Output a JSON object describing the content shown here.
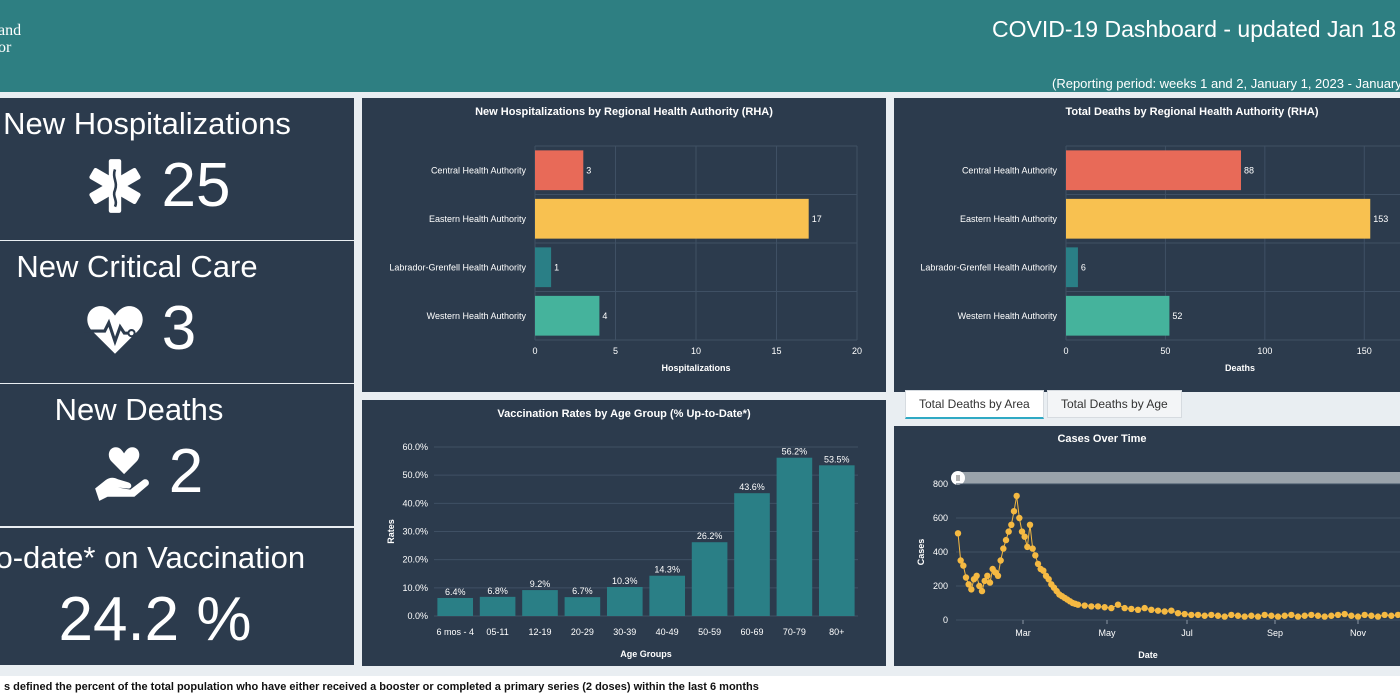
{
  "header": {
    "logo": [
      "and",
      "or"
    ],
    "title": "COVID-19 Dashboard - updated Jan 18",
    "subtitle": "(Reporting period: weeks 1 and 2, January 1, 2023 - January"
  },
  "kpis": [
    {
      "label": "New Hospitalizations",
      "value": "25",
      "icon": "star-of-life-icon"
    },
    {
      "label": "New Critical Care",
      "value": "3",
      "icon": "heart-pulse-icon"
    },
    {
      "label": "New Deaths",
      "value": "2",
      "icon": "hand-holding-heart-icon"
    },
    {
      "label": "to-date* on Vaccination",
      "value": "24.2 %",
      "icon": ""
    }
  ],
  "hosp_chart": {
    "title": "New Hospitalizations by Regional Health Authority (RHA)",
    "xlabel": "Hospitalizations",
    "ticks": [
      "0",
      "5",
      "10",
      "15",
      "20"
    ]
  },
  "deaths_chart": {
    "title": "Total Deaths by Regional Health Authority (RHA)",
    "xlabel": "Deaths",
    "ticks": [
      "0",
      "50",
      "100",
      "150"
    ]
  },
  "vax_chart": {
    "title": "Vaccination Rates by Age Group (% Up-to-Date*)",
    "xlabel": "Age Groups",
    "ylabel": "Rates",
    "ticks": [
      "0.0%",
      "10.0%",
      "20.0%",
      "30.0%",
      "40.0%",
      "50.0%",
      "60.0%"
    ]
  },
  "cases_chart": {
    "title": "Cases Over Time",
    "xlabel": "Date",
    "ylabel": "Cases",
    "ticks_y": [
      "0",
      "200",
      "400",
      "600",
      "800"
    ],
    "ticks_x": [
      "Mar",
      "May",
      "Jul",
      "Sep",
      "Nov"
    ]
  },
  "tabs": {
    "area": "Total Deaths by Area",
    "age": "Total Deaths by Age"
  },
  "footer": "s defined the percent of the total population who have either received a booster or completed a primary series (2 doses) within the last 6 months",
  "colors": {
    "header": "#2e7f82",
    "panel": "#2c3b4d",
    "red": "#e86a58",
    "yellow": "#f8c150",
    "teal": "#2a7f86",
    "green": "#45b39c",
    "dot": "#f5b942",
    "slider": "#9aa3ab"
  },
  "chart_data": [
    {
      "type": "bar",
      "orientation": "horizontal",
      "title": "New Hospitalizations by Regional Health Authority (RHA)",
      "categories": [
        "Central Health Authority",
        "Eastern Health Authority",
        "Labrador-Grenfell Health Authority",
        "Western Health Authority"
      ],
      "values": [
        3,
        17,
        1,
        4
      ],
      "colors": [
        "#e86a58",
        "#f8c150",
        "#2a7f86",
        "#45b39c"
      ],
      "xlabel": "Hospitalizations",
      "xlim": [
        0,
        20
      ]
    },
    {
      "type": "bar",
      "orientation": "horizontal",
      "title": "Total Deaths by Regional Health Authority (RHA)",
      "categories": [
        "Central Health Authority",
        "Eastern Health Authority",
        "Labrador-Grenfell Health Authority",
        "Western Health Authority"
      ],
      "values": [
        88,
        153,
        6,
        52
      ],
      "colors": [
        "#e86a58",
        "#f8c150",
        "#2a7f86",
        "#45b39c"
      ],
      "xlabel": "Deaths",
      "xlim": [
        0,
        175
      ]
    },
    {
      "type": "bar",
      "title": "Vaccination Rates by Age Group (% Up-to-Date*)",
      "categories": [
        "6 mos - 4",
        "05-11",
        "12-19",
        "20-29",
        "30-39",
        "40-49",
        "50-59",
        "60-69",
        "70-79",
        "80+"
      ],
      "values": [
        6.4,
        6.8,
        9.2,
        6.7,
        10.3,
        14.3,
        26.2,
        43.6,
        56.2,
        53.5
      ],
      "labels": [
        "6.4%",
        "6.8%",
        "9.2%",
        "6.7%",
        "10.3%",
        "14.3%",
        "26.2%",
        "43.6%",
        "56.2%",
        "53.5%"
      ],
      "xlabel": "Age Groups",
      "ylabel": "Rates",
      "ylim": [
        0,
        60
      ]
    },
    {
      "type": "scatter",
      "title": "Cases Over Time",
      "xlabel": "Date",
      "ylabel": "Cases",
      "ylim": [
        0,
        800
      ],
      "x_ticks": [
        "Mar",
        "May",
        "Jul",
        "Sep",
        "Nov"
      ],
      "series": [
        {
          "x": [
            0,
            2,
            4,
            6,
            8,
            10,
            12,
            14,
            16,
            18,
            20,
            22,
            24,
            26,
            28,
            30,
            32,
            34,
            36,
            38,
            40,
            42,
            44,
            46,
            48,
            50,
            52,
            54,
            56,
            58,
            60,
            62,
            64,
            66,
            68,
            70,
            72,
            74,
            76,
            78,
            80,
            82,
            84,
            86,
            88,
            90,
            95,
            100,
            105,
            110,
            115,
            120,
            125,
            130,
            135,
            140,
            145,
            150,
            155,
            160,
            165,
            170,
            175,
            180,
            185,
            190,
            195,
            200,
            205,
            210,
            215,
            220,
            225,
            230,
            235,
            240,
            245,
            250,
            255,
            260,
            265,
            270,
            275,
            280,
            285,
            290,
            295,
            300,
            305,
            310,
            315,
            320,
            325,
            330
          ],
          "y": [
            510,
            350,
            320,
            250,
            210,
            180,
            240,
            260,
            200,
            170,
            230,
            260,
            220,
            300,
            280,
            260,
            350,
            420,
            470,
            520,
            560,
            640,
            730,
            600,
            520,
            490,
            430,
            560,
            420,
            380,
            330,
            300,
            290,
            260,
            240,
            210,
            190,
            170,
            150,
            140,
            130,
            120,
            110,
            100,
            95,
            90,
            85,
            80,
            80,
            75,
            70,
            90,
            70,
            65,
            60,
            70,
            60,
            55,
            50,
            55,
            40,
            35,
            30,
            30,
            25,
            30,
            25,
            20,
            30,
            25,
            20,
            25,
            20,
            30,
            25,
            20,
            25,
            30,
            20,
            25,
            30,
            25,
            20,
            25,
            30,
            35,
            25,
            20,
            30,
            25,
            20,
            30,
            25,
            30
          ]
        }
      ]
    }
  ]
}
